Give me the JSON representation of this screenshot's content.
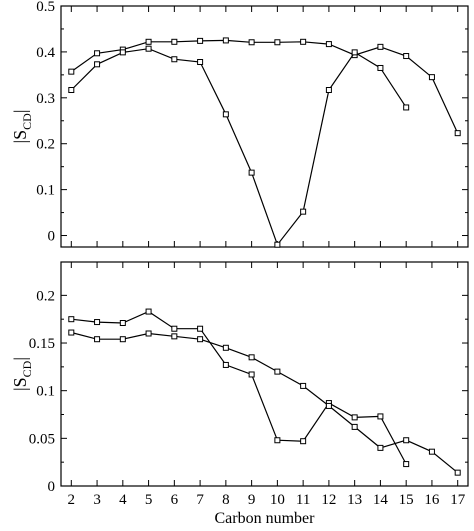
{
  "chart_data": [
    {
      "type": "line",
      "ylabel_main": "|S",
      "ylabel_sub": "CD",
      "ylabel_end": "|",
      "xlabel": "",
      "xlim": [
        1.6,
        17.4
      ],
      "ylim": [
        -0.025,
        0.5
      ],
      "yticks": [
        0,
        0.1,
        0.2,
        0.3,
        0.4,
        0.5
      ],
      "ytick_labels": [
        "0",
        "0.1",
        "0.2",
        "0.3",
        "0.4",
        "0.5"
      ],
      "xticks": [
        2,
        3,
        4,
        5,
        6,
        7,
        8,
        9,
        10,
        11,
        12,
        13,
        14,
        15,
        16,
        17
      ],
      "xtick_labels": [],
      "series": [
        {
          "x": [
            2,
            3,
            4,
            5,
            6,
            7,
            8,
            9,
            10,
            11,
            12,
            13,
            14,
            15,
            16,
            17
          ],
          "values": [
            0.357,
            0.397,
            0.405,
            0.422,
            0.422,
            0.424,
            0.425,
            0.421,
            0.421,
            0.422,
            0.417,
            0.393,
            0.411,
            0.391,
            0.345,
            0.223
          ]
        },
        {
          "x": [
            2,
            3,
            4,
            5,
            6,
            7,
            8,
            9,
            10,
            11,
            12,
            13,
            14,
            15
          ],
          "values": [
            0.317,
            0.373,
            0.399,
            0.407,
            0.384,
            0.378,
            0.264,
            0.137,
            -0.02,
            0.052,
            0.317,
            0.399,
            0.365,
            0.279
          ]
        }
      ]
    },
    {
      "type": "line",
      "ylabel_main": "|S",
      "ylabel_sub": "CD",
      "ylabel_end": "|",
      "xlabel": "Carbon number",
      "xlim": [
        1.6,
        17.4
      ],
      "ylim": [
        0,
        0.235
      ],
      "yticks": [
        0,
        0.05,
        0.1,
        0.15,
        0.2
      ],
      "ytick_labels": [
        "0",
        "0.05",
        "0.1",
        "0.15",
        "0.2"
      ],
      "xticks": [
        2,
        3,
        4,
        5,
        6,
        7,
        8,
        9,
        10,
        11,
        12,
        13,
        14,
        15,
        16,
        17
      ],
      "xtick_labels": [
        "2",
        "3",
        "4",
        "5",
        "6",
        "7",
        "8",
        "9",
        "10",
        "11",
        "12",
        "13",
        "14",
        "15",
        "16",
        "17"
      ],
      "series": [
        {
          "x": [
            2,
            3,
            4,
            5,
            6,
            7,
            8,
            9,
            10,
            11,
            12,
            13,
            14,
            15
          ],
          "values": [
            0.175,
            0.172,
            0.171,
            0.183,
            0.165,
            0.165,
            0.127,
            0.117,
            0.048,
            0.047,
            0.087,
            0.072,
            0.073,
            0.023
          ]
        },
        {
          "x": [
            2,
            3,
            4,
            5,
            6,
            7,
            8,
            9,
            10,
            11,
            12,
            13,
            14,
            15,
            16,
            17
          ],
          "values": [
            0.161,
            0.154,
            0.154,
            0.16,
            0.157,
            0.154,
            0.145,
            0.135,
            0.12,
            0.105,
            0.084,
            0.062,
            0.04,
            0.048,
            0.036,
            0.014
          ]
        }
      ]
    }
  ]
}
